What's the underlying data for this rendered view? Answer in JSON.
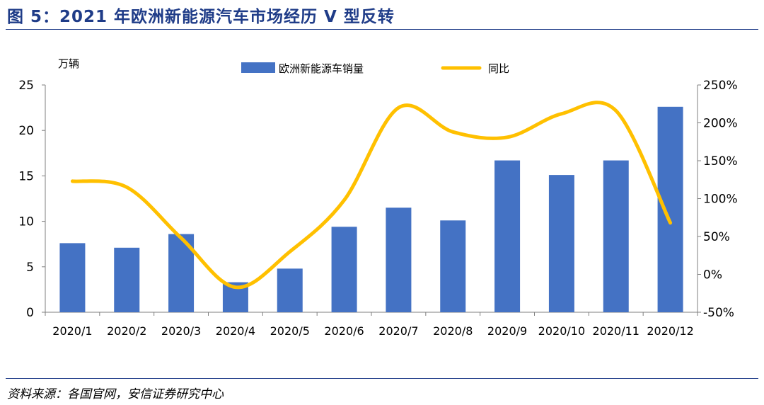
{
  "header": {
    "title": "图 5：2021 年欧洲新能源汽车市场经历 V 型反转"
  },
  "footer": {
    "source": "资料来源：各国官网，安信证券研究中心"
  },
  "colors": {
    "title": "#1f3c88",
    "bar": "#4472c4",
    "line": "#ffc000",
    "axis": "#7f7f7f"
  },
  "chart_data": {
    "type": "bar",
    "unit_label": "万辆",
    "categories": [
      "2020/1",
      "2020/2",
      "2020/3",
      "2020/4",
      "2020/5",
      "2020/6",
      "2020/7",
      "2020/8",
      "2020/9",
      "2020/10",
      "2020/11",
      "2020/12"
    ],
    "ylim": [
      0,
      25
    ],
    "yticks": [
      0,
      5,
      10,
      15,
      20,
      25
    ],
    "y2lim": [
      -50,
      250
    ],
    "y2ticks": [
      -50,
      0,
      50,
      100,
      150,
      200,
      250
    ],
    "y2tick_labels": [
      "-50%",
      "0%",
      "50%",
      "100%",
      "150%",
      "200%",
      "250%"
    ],
    "legend_position": "top",
    "grid": false,
    "series": [
      {
        "name": "欧洲新能源车销量",
        "type": "bar",
        "axis": "left",
        "values": [
          7.6,
          7.1,
          8.6,
          3.3,
          4.8,
          9.4,
          11.5,
          10.1,
          16.7,
          15.1,
          16.7,
          22.6
        ]
      },
      {
        "name": "同比",
        "type": "line",
        "axis": "right",
        "smooth": true,
        "values": [
          123,
          115,
          48,
          -17,
          30,
          98,
          220,
          188,
          181,
          212,
          216,
          68
        ]
      }
    ]
  }
}
